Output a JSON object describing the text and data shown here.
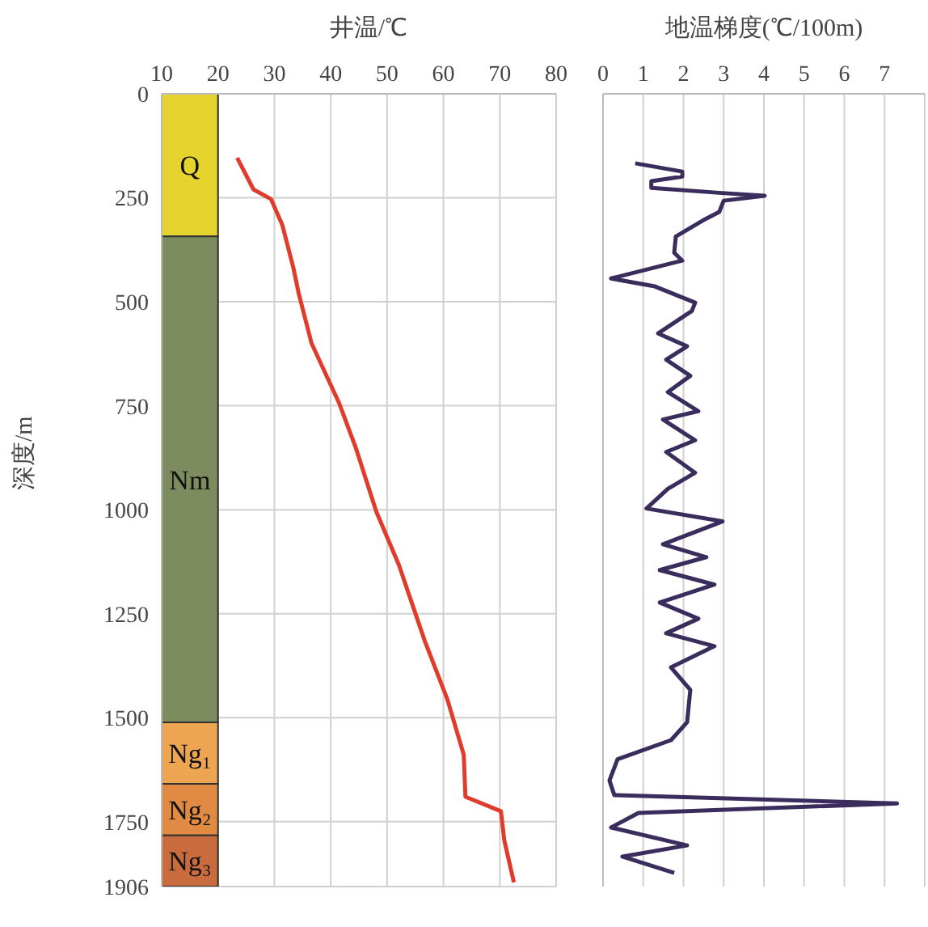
{
  "chart_data": [
    {
      "type": "line",
      "xlabel": "井温/℃",
      "ylabel": "深度/m",
      "xlim": [
        10,
        80
      ],
      "xticks": [
        10,
        20,
        30,
        40,
        50,
        60,
        70,
        80
      ],
      "ylim": [
        1906,
        0
      ],
      "yticks": [
        0,
        250,
        500,
        750,
        1000,
        1250,
        1500,
        1750,
        1906
      ],
      "grid": true,
      "series": [
        {
          "color": "#e03c2c",
          "x": [
            23.4,
            26.3,
            29.4,
            31.4,
            33.4,
            34.3,
            36.6,
            41.5,
            44.4,
            48.1,
            52.1,
            56.7,
            60.7,
            63.6,
            63.9,
            70.2,
            70.8,
            72.5
          ],
          "values": [
            154,
            230,
            253,
            315,
            420,
            479,
            600,
            744,
            849,
            1005,
            1133,
            1316,
            1456,
            1589,
            1690,
            1725,
            1795,
            1896
          ]
        }
      ],
      "bands": [
        {
          "axis": "y",
          "from": 0,
          "to": 343,
          "label": "Q",
          "color": "#e6d42e"
        },
        {
          "axis": "y",
          "from": 343,
          "to": 1511,
          "label": "Nm",
          "color": "#7d8c5e"
        },
        {
          "axis": "y",
          "from": 1511,
          "to": 1659,
          "label": "Ng₁",
          "color": "#eea552"
        },
        {
          "axis": "y",
          "from": 1659,
          "to": 1783,
          "label": "Ng₂",
          "color": "#e08a44"
        },
        {
          "axis": "y",
          "from": 1783,
          "to": 1906,
          "label": "Ng₃",
          "color": "#c86c3e"
        }
      ]
    },
    {
      "type": "line",
      "xlabel": "地温梯度(℃/100m)",
      "xlim": [
        0,
        8
      ],
      "xticks": [
        0,
        1,
        2,
        3,
        4,
        5,
        6,
        7,
        {
          "value": 8,
          "label": null
        }
      ],
      "ylim": [
        1906,
        0
      ],
      "yticks": [
        0,
        250,
        500,
        750,
        1000,
        1250,
        1500,
        1750,
        1906
      ],
      "grid": true,
      "tick_labels": "x",
      "series": [
        {
          "color": "#3a2c5c",
          "x": [
            0.8,
            1.97,
            1.97,
            1.2,
            1.2,
            2.89,
            4.02,
            3.0,
            2.89,
            2.49,
            1.81,
            1.77,
            1.97,
            0.2,
            1.29,
            2.29,
            2.21,
            1.37,
            2.09,
            1.57,
            2.17,
            1.61,
            2.37,
            1.49,
            2.29,
            1.57,
            2.29,
            1.61,
            1.08,
            2.97,
            1.49,
            2.57,
            1.41,
            2.77,
            1.41,
            2.37,
            1.57,
            2.77,
            1.69,
            2.17,
            2.09,
            1.69,
            0.36,
            0.16,
            0.28,
            7.31,
            0.88,
            0.2,
            2.09,
            0.48,
            1.77
          ],
          "values": [
            167,
            187,
            199,
            210,
            226,
            238,
            245,
            257,
            284,
            304,
            343,
            382,
            401,
            444,
            463,
            502,
            522,
            576,
            607,
            639,
            678,
            717,
            763,
            783,
            833,
            861,
            911,
            950,
            997,
            1028,
            1083,
            1114,
            1145,
            1180,
            1223,
            1262,
            1297,
            1328,
            1379,
            1433,
            1511,
            1554,
            1600,
            1651,
            1686,
            1706,
            1729,
            1764,
            1807,
            1834,
            1873
          ]
        }
      ]
    }
  ]
}
